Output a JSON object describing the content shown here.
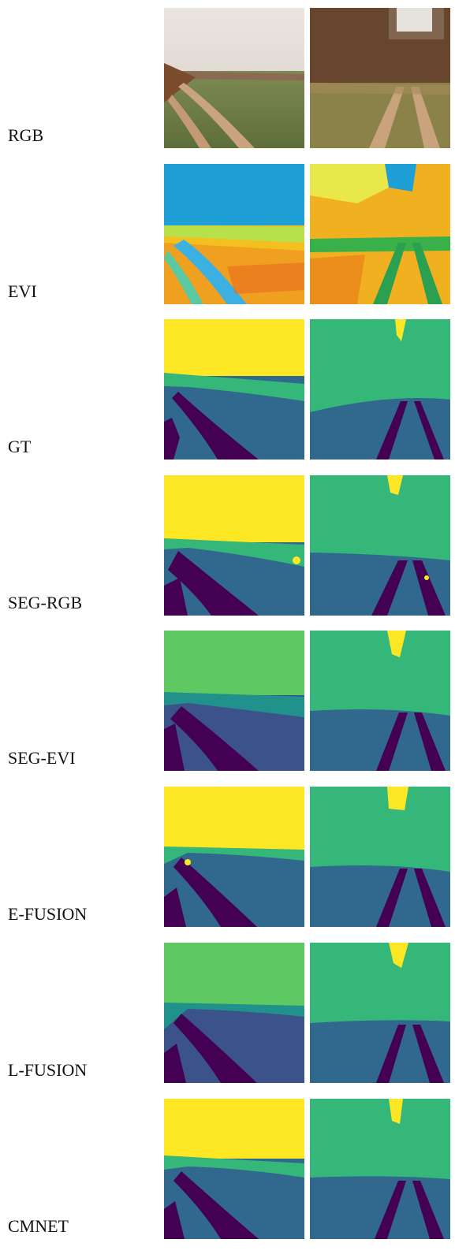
{
  "rows": [
    {
      "label": "RGB"
    },
    {
      "label": "EVI"
    },
    {
      "label": "GT"
    },
    {
      "label": "SEG-RGB"
    },
    {
      "label": "SEG-EVI"
    },
    {
      "label": "E-FUSION"
    },
    {
      "label": "L-FUSION"
    },
    {
      "label": "CMNET"
    }
  ],
  "colors": {
    "sky_yellow": "#fde725",
    "vegetation_green": "#35b779",
    "vegetation_lightgreen": "#5ec962",
    "ground_blue": "#31688e",
    "ground_indigo": "#3b528b",
    "teal": "#21918c",
    "path_purple": "#440154"
  }
}
